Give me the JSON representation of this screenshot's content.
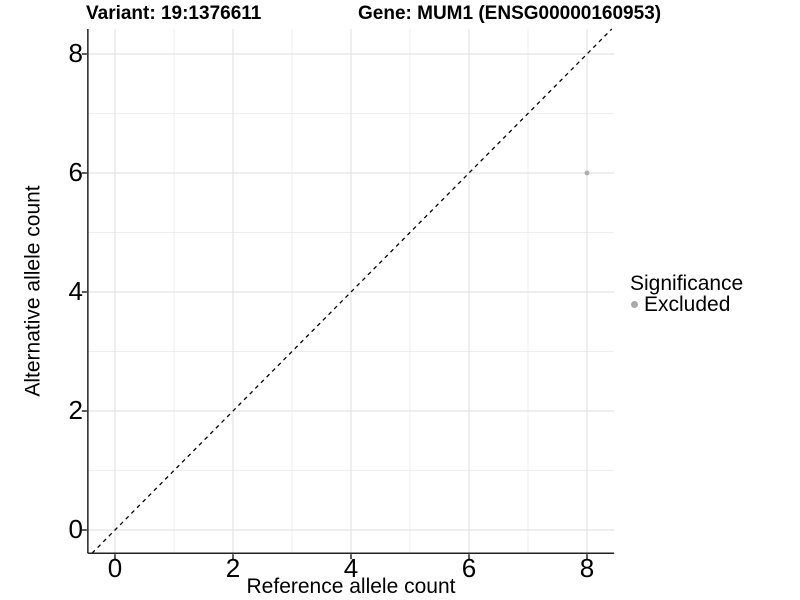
{
  "header": {
    "variant_title": "Variant: 19:1376611",
    "gene_title": "Gene: MUM1 (ENSG00000160953)"
  },
  "chart_data": {
    "type": "scatter",
    "title": "Variant: 19:1376611   Gene: MUM1 (ENSG00000160953)",
    "xlabel": "Reference allele count",
    "ylabel": "Alternative allele count",
    "xticks": [
      0,
      2,
      4,
      6,
      8
    ],
    "yticks": [
      0,
      2,
      4,
      6,
      8
    ],
    "minor_ticks": [
      1,
      3,
      5,
      7
    ],
    "xlim": [
      -0.46,
      8.46
    ],
    "ylim": [
      -0.39,
      8.42
    ],
    "grid": "major+minor",
    "identity_line": {
      "intercept": 0,
      "slope": 1,
      "style": "dashed",
      "color": "#000000"
    },
    "points": [
      {
        "x": 8,
        "y": 6,
        "series": "Excluded",
        "color": "#b0b0b0",
        "radius": 2.5
      }
    ],
    "legend": {
      "title": "Significance",
      "position": "right",
      "entries": [
        {
          "label": "Excluded",
          "color": "#aaaaaa"
        }
      ]
    },
    "colors": {
      "background": "#ffffff",
      "grid_major": "#e4e4e4",
      "grid_minor": "#efefef",
      "axis_line": "#222222",
      "tick_mark": "#222222",
      "text": "#000000"
    }
  }
}
